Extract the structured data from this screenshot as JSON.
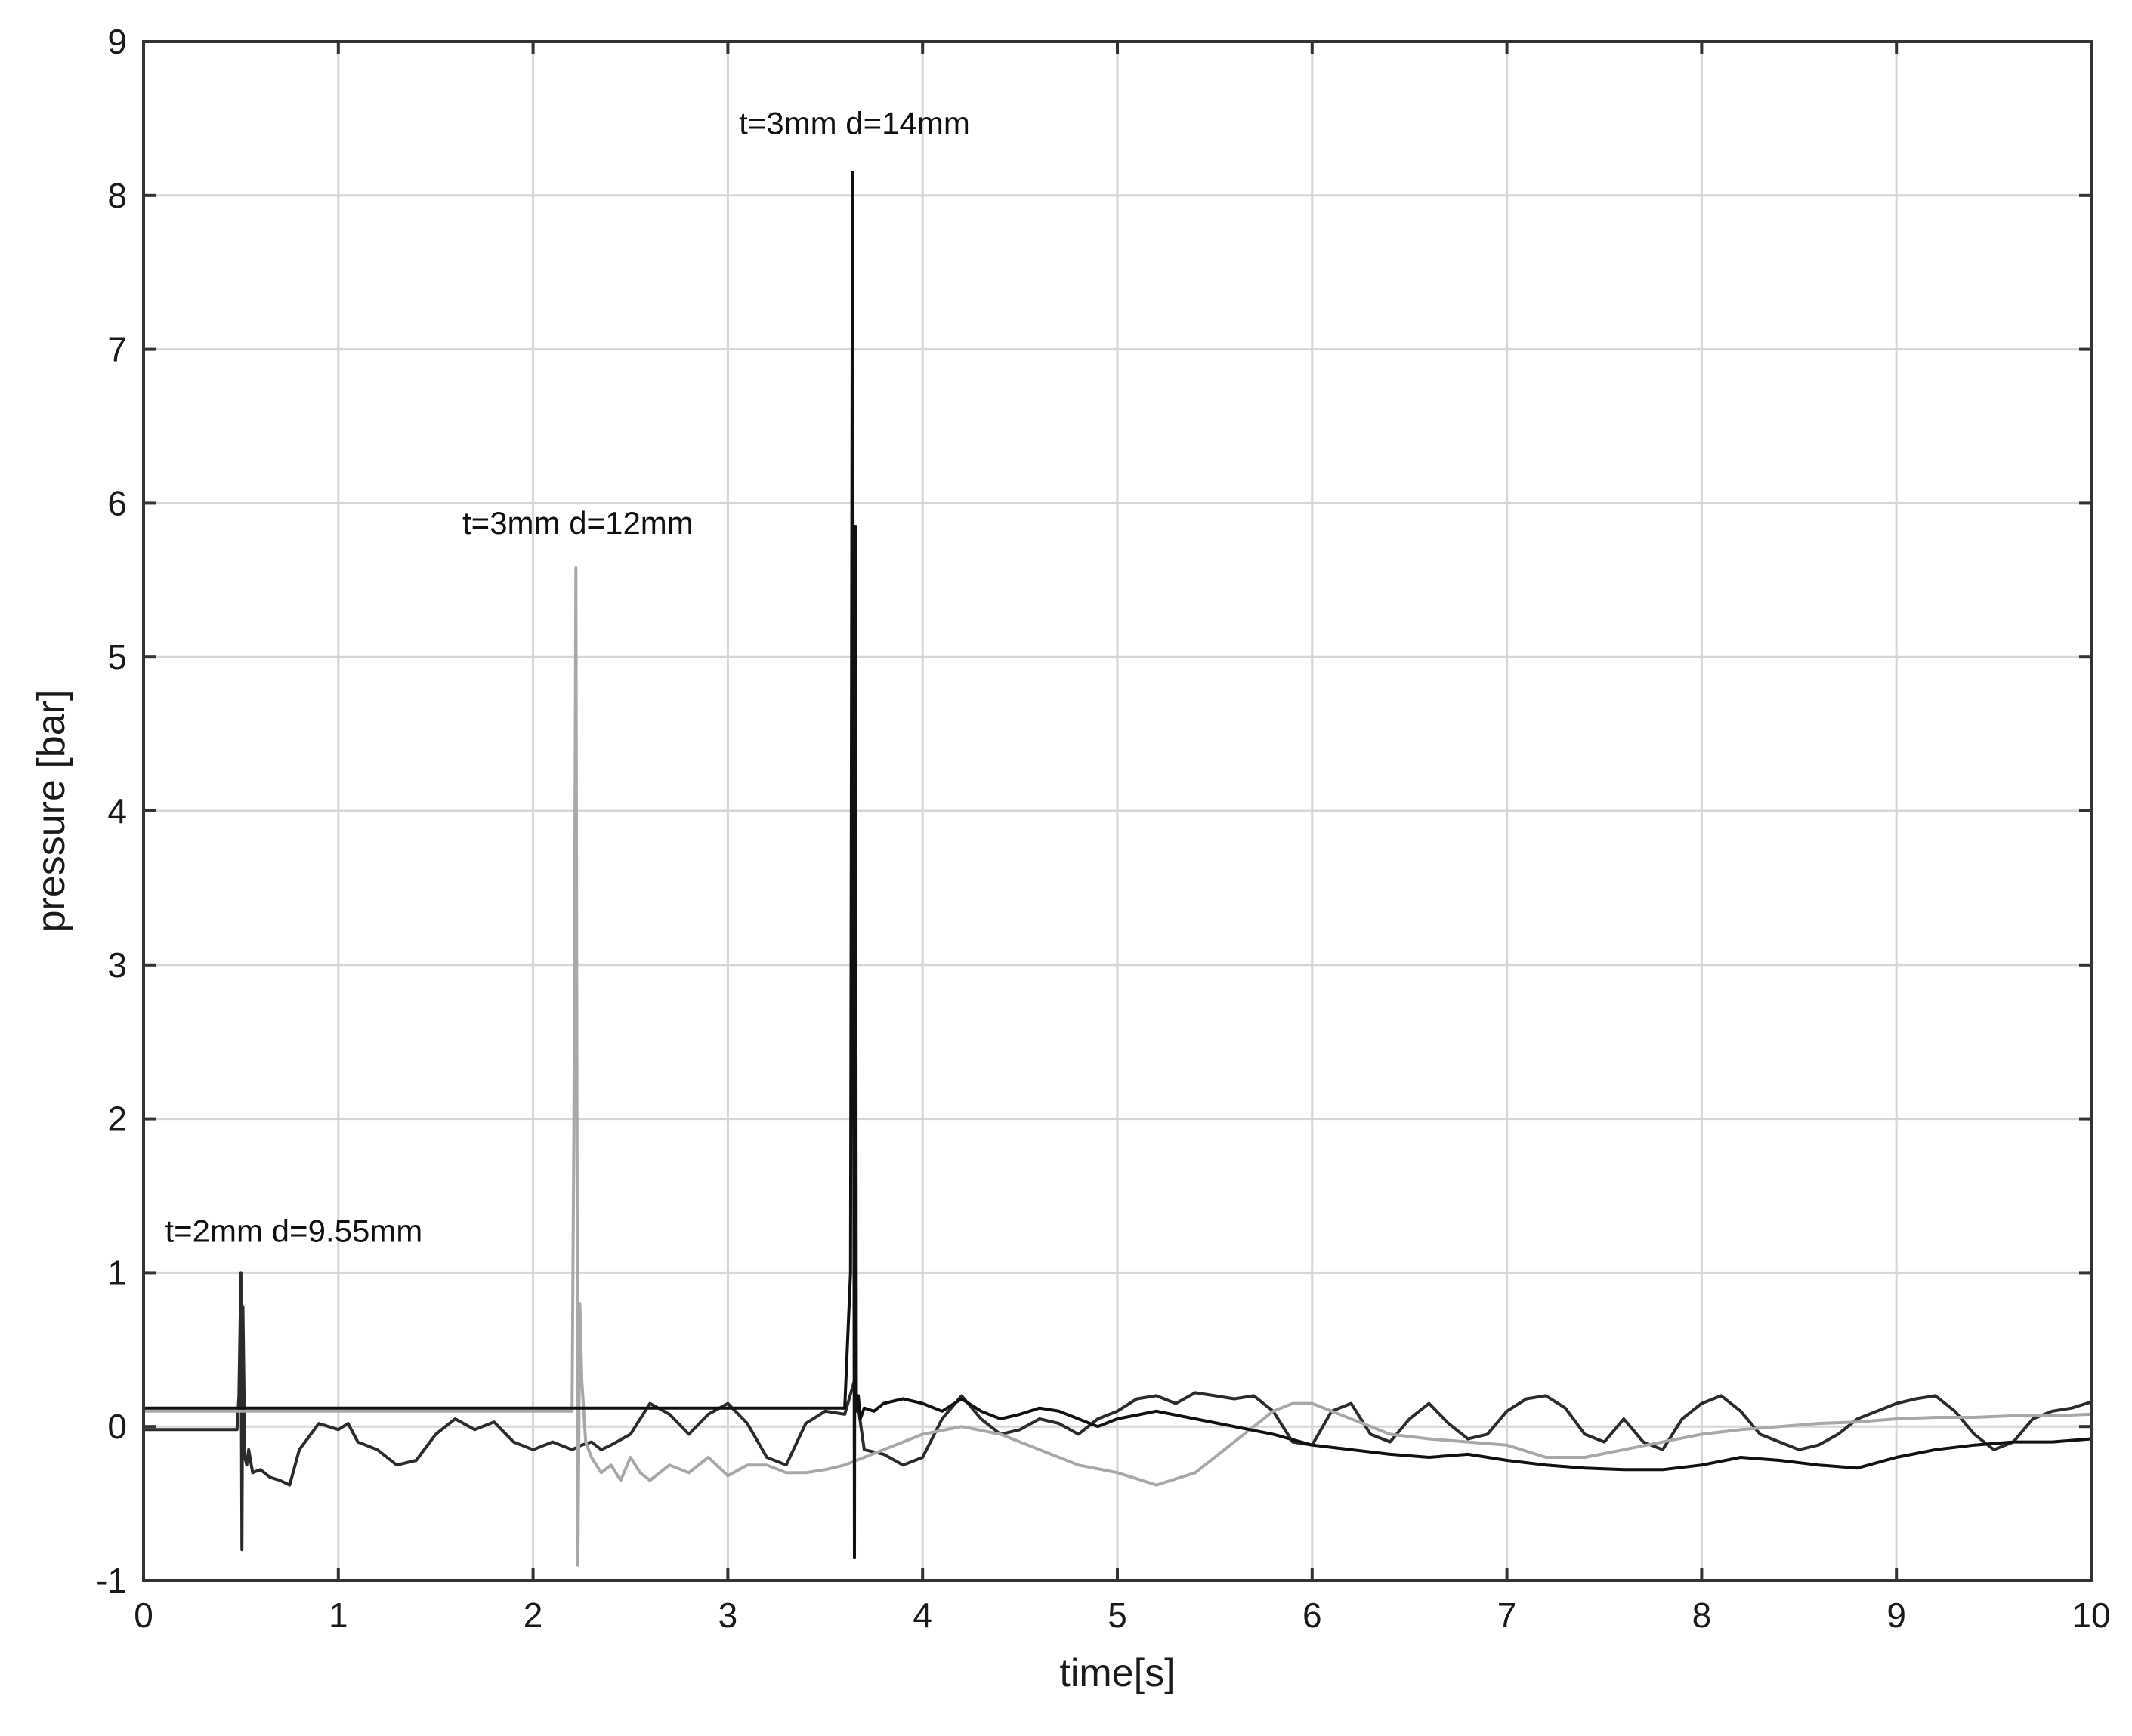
{
  "chart_data": {
    "type": "line",
    "title": "",
    "xlabel": "time[s]",
    "ylabel": "pressure [bar]",
    "xlim": [
      0,
      10
    ],
    "ylim": [
      -1,
      9
    ],
    "xticks": [
      0,
      1,
      2,
      3,
      4,
      5,
      6,
      7,
      8,
      9,
      10
    ],
    "yticks": [
      -1,
      0,
      1,
      2,
      3,
      4,
      5,
      6,
      7,
      8,
      9
    ],
    "grid": true,
    "legend": "none",
    "annotations": [
      {
        "text": "t=2mm d=9.55mm",
        "x": 0.5,
        "y": 1.2
      },
      {
        "text": "t=3mm d=12mm",
        "x": 2.23,
        "y": 5.8
      },
      {
        "text": "t=3mm d=14mm",
        "x": 3.65,
        "y": 8.4
      }
    ],
    "series": [
      {
        "color": "#2b2b2b",
        "x": [
          0,
          0.48,
          0.49,
          0.5,
          0.505,
          0.51,
          0.52,
          0.53,
          0.54,
          0.56,
          0.6,
          0.65,
          0.7,
          0.75,
          0.8,
          0.9,
          1.0,
          1.05,
          1.1,
          1.2,
          1.3,
          1.4,
          1.5,
          1.6,
          1.7,
          1.8,
          1.9,
          2.0,
          2.1,
          2.2,
          2.25,
          2.3,
          2.35,
          2.4,
          2.5,
          2.6,
          2.7,
          2.8,
          2.9,
          3.0,
          3.1,
          3.2,
          3.3,
          3.4,
          3.5,
          3.6,
          3.65,
          3.7,
          3.8,
          3.9,
          4.0,
          4.1,
          4.2,
          4.3,
          4.4,
          4.5,
          4.6,
          4.7,
          4.8,
          4.9,
          5.0,
          5.1,
          5.2,
          5.3,
          5.4,
          5.5,
          5.6,
          5.7,
          5.8,
          5.9,
          6.0,
          6.1,
          6.2,
          6.3,
          6.4,
          6.5,
          6.6,
          6.7,
          6.8,
          6.9,
          7.0,
          7.1,
          7.2,
          7.3,
          7.4,
          7.5,
          7.6,
          7.7,
          7.8,
          7.9,
          8.0,
          8.1,
          8.2,
          8.3,
          8.4,
          8.5,
          8.6,
          8.7,
          8.8,
          8.9,
          9.0,
          9.1,
          9.2,
          9.3,
          9.4,
          9.5,
          9.6,
          9.7,
          9.8,
          9.9,
          10.0
        ],
        "y": [
          -0.02,
          -0.02,
          0.2,
          1.0,
          -0.8,
          0.78,
          -0.2,
          -0.25,
          -0.15,
          -0.3,
          -0.28,
          -0.33,
          -0.35,
          -0.38,
          -0.15,
          0.02,
          -0.02,
          0.02,
          -0.1,
          -0.15,
          -0.25,
          -0.22,
          -0.05,
          0.05,
          -0.02,
          0.03,
          -0.1,
          -0.15,
          -0.1,
          -0.15,
          -0.12,
          -0.1,
          -0.15,
          -0.12,
          -0.05,
          0.15,
          0.08,
          -0.05,
          0.08,
          0.15,
          0.02,
          -0.2,
          -0.25,
          0.02,
          0.1,
          0.08,
          0.3,
          -0.15,
          -0.18,
          -0.25,
          -0.2,
          0.05,
          0.2,
          0.05,
          -0.05,
          -0.02,
          0.05,
          0.02,
          -0.05,
          0.05,
          0.1,
          0.18,
          0.2,
          0.15,
          0.22,
          0.2,
          0.18,
          0.2,
          0.1,
          -0.1,
          -0.12,
          0.1,
          0.15,
          -0.05,
          -0.1,
          0.05,
          0.15,
          0.02,
          -0.08,
          -0.05,
          0.1,
          0.18,
          0.2,
          0.12,
          -0.05,
          -0.1,
          0.05,
          -0.1,
          -0.15,
          0.05,
          0.15,
          0.2,
          0.1,
          -0.05,
          -0.1,
          -0.15,
          -0.12,
          -0.05,
          0.05,
          0.1,
          0.15,
          0.18,
          0.2,
          0.1,
          -0.05,
          -0.15,
          -0.1,
          0.05,
          0.1,
          0.12,
          0.16
        ]
      },
      {
        "color": "#a8a8a8",
        "x": [
          0,
          2.18,
          2.2,
          2.21,
          2.22,
          2.23,
          2.24,
          2.25,
          2.27,
          2.3,
          2.35,
          2.4,
          2.45,
          2.5,
          2.55,
          2.6,
          2.7,
          2.8,
          2.9,
          3.0,
          3.1,
          3.2,
          3.3,
          3.4,
          3.5,
          3.6,
          3.7,
          3.8,
          3.9,
          4.0,
          4.2,
          4.4,
          4.6,
          4.8,
          5.0,
          5.2,
          5.4,
          5.6,
          5.8,
          5.9,
          6.0,
          6.2,
          6.4,
          6.6,
          6.8,
          7.0,
          7.2,
          7.4,
          7.6,
          7.8,
          8.0,
          8.2,
          8.4,
          8.6,
          8.8,
          9.0,
          9.2,
          9.4,
          9.6,
          9.8,
          10.0
        ],
        "y": [
          0.1,
          0.1,
          0.1,
          2.0,
          5.58,
          -0.9,
          0.8,
          0.3,
          -0.1,
          -0.2,
          -0.3,
          -0.25,
          -0.35,
          -0.2,
          -0.3,
          -0.35,
          -0.25,
          -0.3,
          -0.2,
          -0.32,
          -0.25,
          -0.25,
          -0.3,
          -0.3,
          -0.28,
          -0.25,
          -0.2,
          -0.15,
          -0.1,
          -0.05,
          0.0,
          -0.05,
          -0.15,
          -0.25,
          -0.3,
          -0.38,
          -0.3,
          -0.1,
          0.1,
          0.15,
          0.15,
          0.05,
          -0.05,
          -0.08,
          -0.1,
          -0.12,
          -0.2,
          -0.2,
          -0.15,
          -0.1,
          -0.05,
          -0.02,
          0.0,
          0.02,
          0.03,
          0.05,
          0.06,
          0.06,
          0.07,
          0.07,
          0.08
        ]
      },
      {
        "color": "#111111",
        "x": [
          0,
          0.5,
          1.0,
          2.0,
          3.0,
          3.6,
          3.63,
          3.64,
          3.65,
          3.655,
          3.66,
          3.67,
          3.68,
          3.7,
          3.75,
          3.8,
          3.9,
          4.0,
          4.1,
          4.2,
          4.3,
          4.4,
          4.5,
          4.6,
          4.7,
          4.8,
          4.9,
          5.0,
          5.2,
          5.4,
          5.6,
          5.8,
          6.0,
          6.2,
          6.4,
          6.6,
          6.8,
          7.0,
          7.2,
          7.4,
          7.6,
          7.8,
          8.0,
          8.2,
          8.4,
          8.6,
          8.8,
          9.0,
          9.2,
          9.4,
          9.6,
          9.8,
          10.0
        ],
        "y": [
          0.12,
          0.12,
          0.12,
          0.12,
          0.12,
          0.12,
          1.0,
          8.15,
          -0.85,
          5.85,
          0.1,
          0.2,
          0.05,
          0.12,
          0.1,
          0.15,
          0.18,
          0.15,
          0.1,
          0.18,
          0.1,
          0.05,
          0.08,
          0.12,
          0.1,
          0.05,
          0.0,
          0.05,
          0.1,
          0.05,
          0.0,
          -0.05,
          -0.12,
          -0.15,
          -0.18,
          -0.2,
          -0.18,
          -0.22,
          -0.25,
          -0.27,
          -0.28,
          -0.28,
          -0.25,
          -0.2,
          -0.22,
          -0.25,
          -0.27,
          -0.2,
          -0.15,
          -0.12,
          -0.1,
          -0.1,
          -0.08
        ]
      }
    ]
  }
}
